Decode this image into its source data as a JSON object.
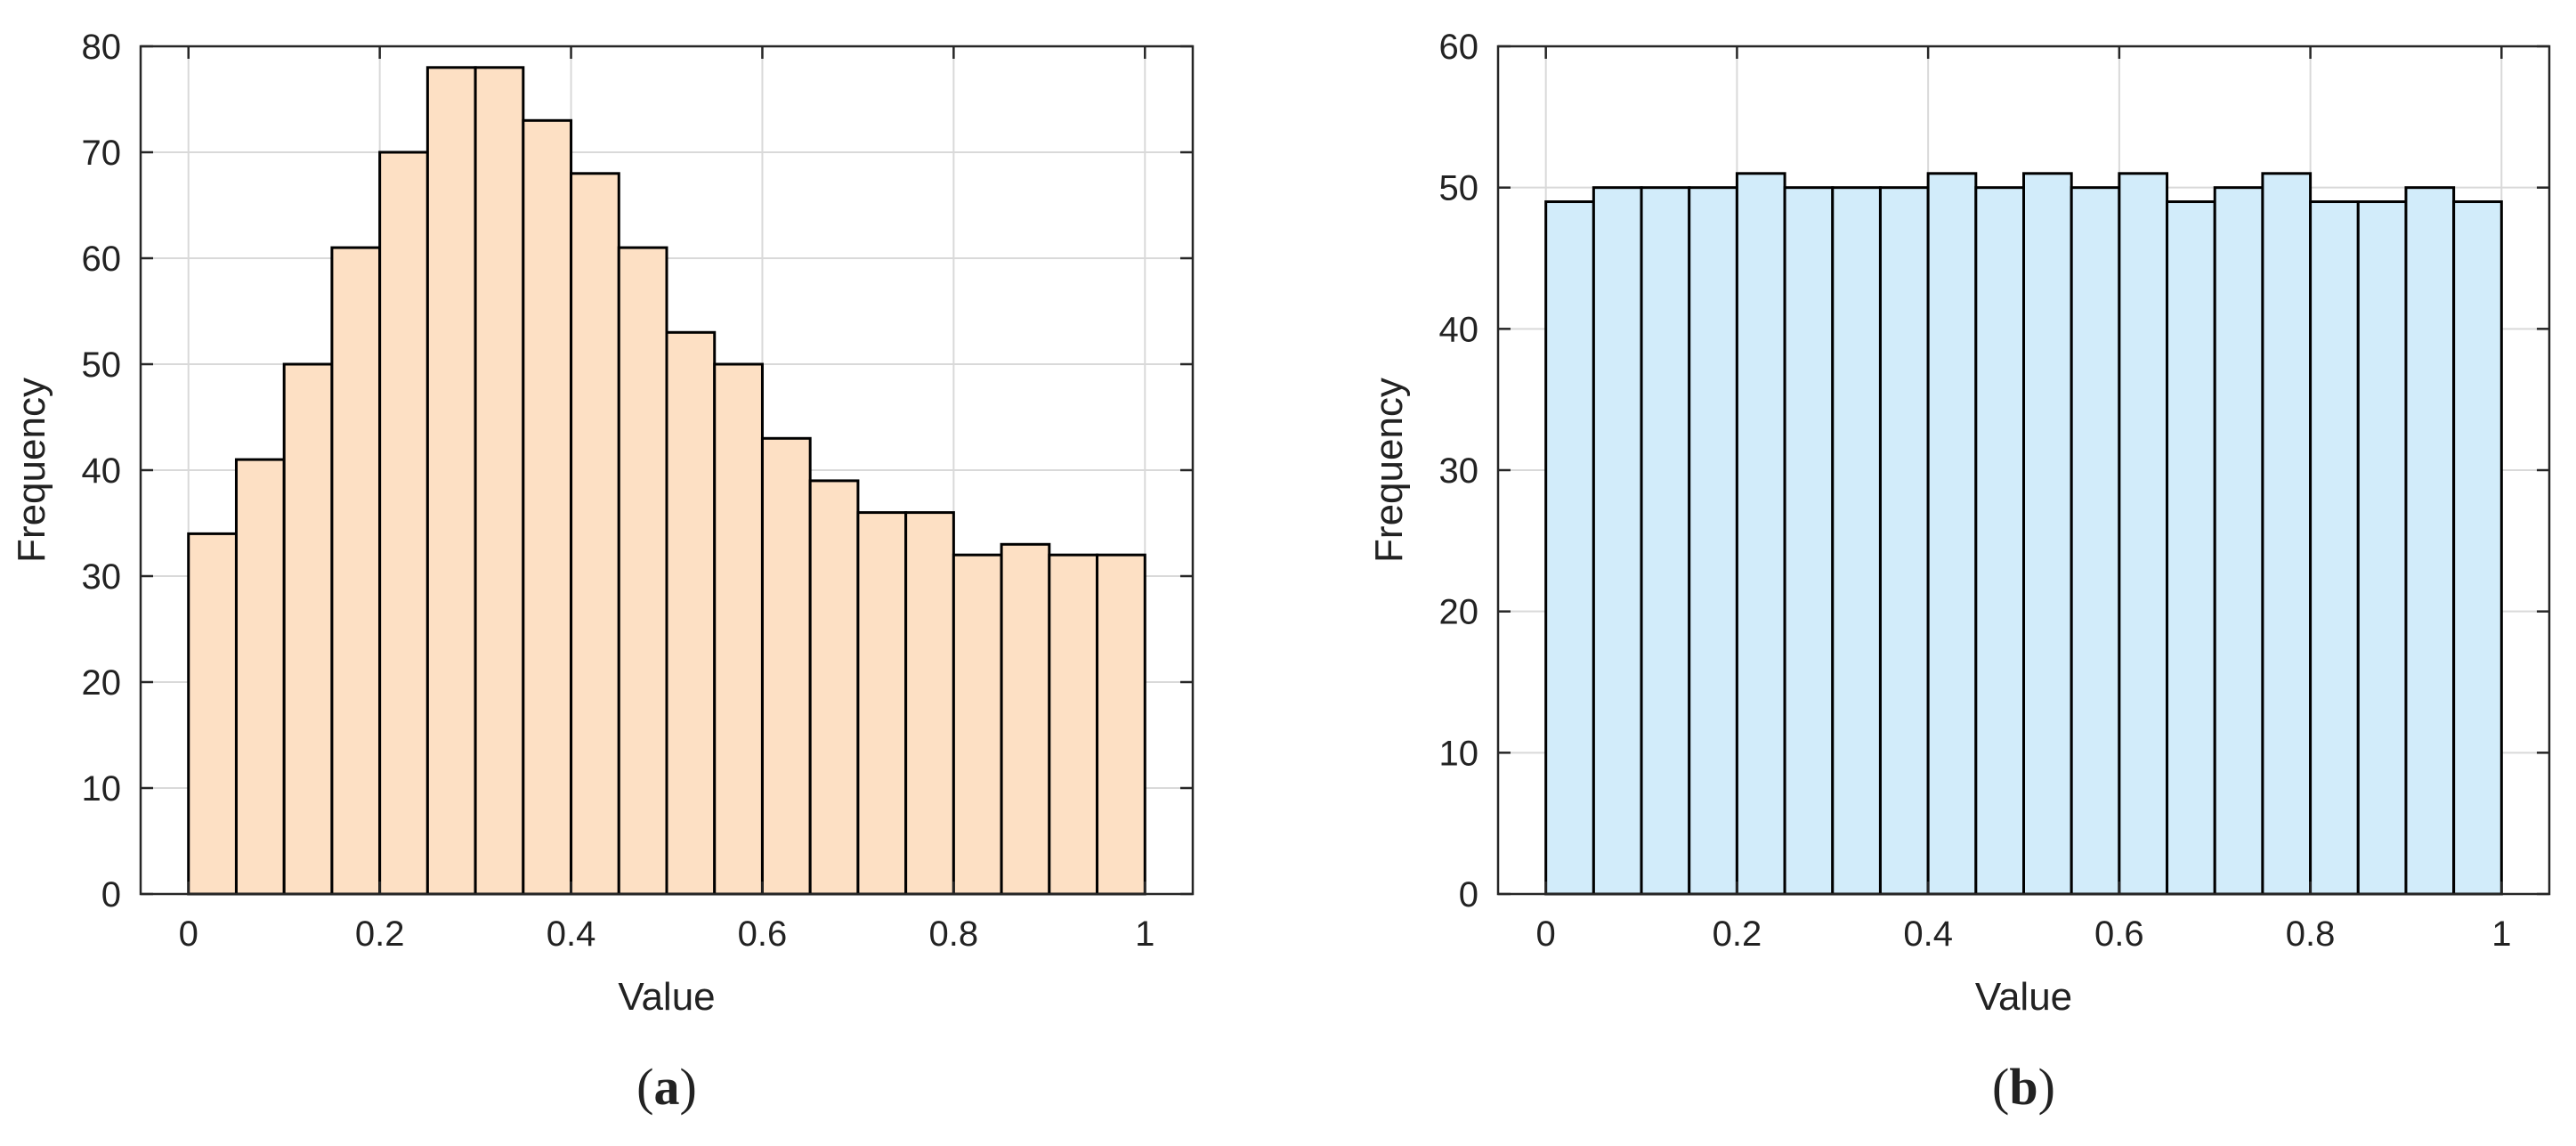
{
  "chart_data": [
    {
      "type": "bar",
      "panel_label": "(a)",
      "panel_letter": "a",
      "xlabel": "Value",
      "ylabel": "Frequency",
      "xlim": [
        -0.05,
        1.05
      ],
      "ylim": [
        0,
        80
      ],
      "xticks": [
        0,
        0.2,
        0.4,
        0.6,
        0.8,
        1
      ],
      "xtick_labels": [
        "0",
        "0.2",
        "0.4",
        "0.6",
        "0.8",
        "1"
      ],
      "yticks": [
        0,
        10,
        20,
        30,
        40,
        50,
        60,
        70,
        80
      ],
      "ytick_labels": [
        "0",
        "10",
        "20",
        "30",
        "40",
        "50",
        "60",
        "70",
        "80"
      ],
      "grid": true,
      "bin_edges": [
        0,
        0.05,
        0.1,
        0.15,
        0.2,
        0.25,
        0.3,
        0.35,
        0.4,
        0.45,
        0.5,
        0.55,
        0.6,
        0.65,
        0.7,
        0.75,
        0.8,
        0.85,
        0.9,
        0.95,
        1.0
      ],
      "values": [
        34,
        41,
        50,
        61,
        70,
        78,
        78,
        73,
        68,
        61,
        53,
        50,
        43,
        39,
        36,
        36,
        32,
        33,
        32,
        32
      ],
      "bar_color": "#fde0c4",
      "edge_color": "#000000"
    },
    {
      "type": "bar",
      "panel_label": "(b)",
      "panel_letter": "b",
      "xlabel": "Value",
      "ylabel": "Frequency",
      "xlim": [
        -0.05,
        1.05
      ],
      "ylim": [
        0,
        60
      ],
      "xticks": [
        0,
        0.2,
        0.4,
        0.6,
        0.8,
        1
      ],
      "xtick_labels": [
        "0",
        "0.2",
        "0.4",
        "0.6",
        "0.8",
        "1"
      ],
      "yticks": [
        0,
        10,
        20,
        30,
        40,
        50,
        60
      ],
      "ytick_labels": [
        "0",
        "10",
        "20",
        "30",
        "40",
        "50",
        "60"
      ],
      "grid": true,
      "bin_edges": [
        0,
        0.05,
        0.1,
        0.15,
        0.2,
        0.25,
        0.3,
        0.35,
        0.4,
        0.45,
        0.5,
        0.55,
        0.6,
        0.65,
        0.7,
        0.75,
        0.8,
        0.85,
        0.9,
        0.95,
        1.0
      ],
      "values": [
        49,
        50,
        50,
        50,
        51,
        50,
        50,
        50,
        51,
        50,
        51,
        50,
        51,
        49,
        50,
        51,
        49,
        49,
        50,
        49
      ],
      "bar_color": "#d2ecfa",
      "edge_color": "#000000"
    }
  ]
}
